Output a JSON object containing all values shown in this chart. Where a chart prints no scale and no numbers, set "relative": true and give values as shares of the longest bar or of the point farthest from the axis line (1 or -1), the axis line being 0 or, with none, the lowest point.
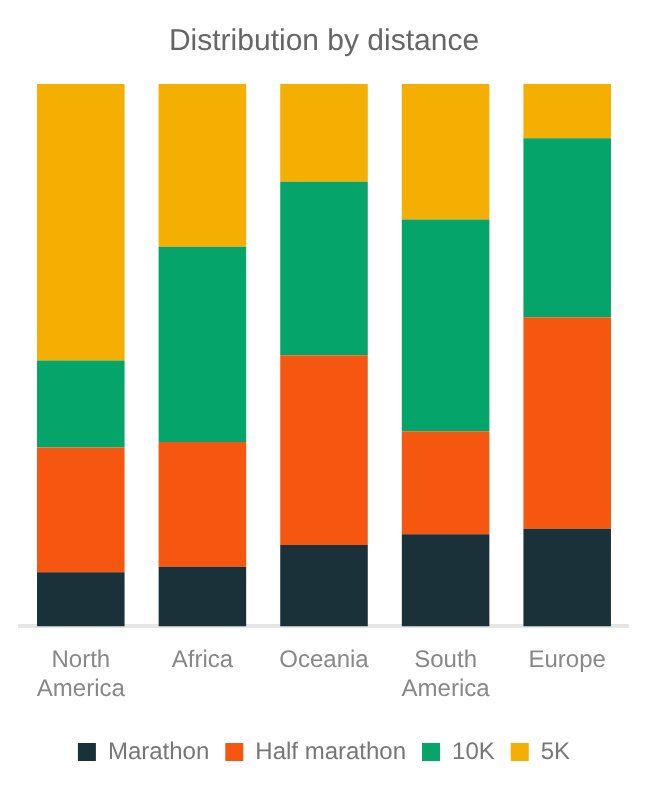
{
  "chart_data": {
    "type": "bar",
    "title": "Distribution by distance",
    "stacked": true,
    "relative": true,
    "categories": [
      "North America",
      "Africa",
      "Oceania",
      "South America",
      "Europe"
    ],
    "series": [
      {
        "name": "Marathon",
        "color": "#1b3139",
        "values": [
          0.1,
          0.11,
          0.15,
          0.17,
          0.18
        ]
      },
      {
        "name": "Half marathon",
        "color": "#f55711",
        "values": [
          0.23,
          0.23,
          0.35,
          0.19,
          0.39
        ]
      },
      {
        "name": "10K",
        "color": "#04a46b",
        "values": [
          0.16,
          0.36,
          0.32,
          0.39,
          0.33
        ]
      },
      {
        "name": "5K",
        "color": "#f5ae02",
        "values": [
          0.51,
          0.3,
          0.18,
          0.25,
          0.1
        ]
      }
    ],
    "grid": false,
    "legend": "bottom"
  }
}
